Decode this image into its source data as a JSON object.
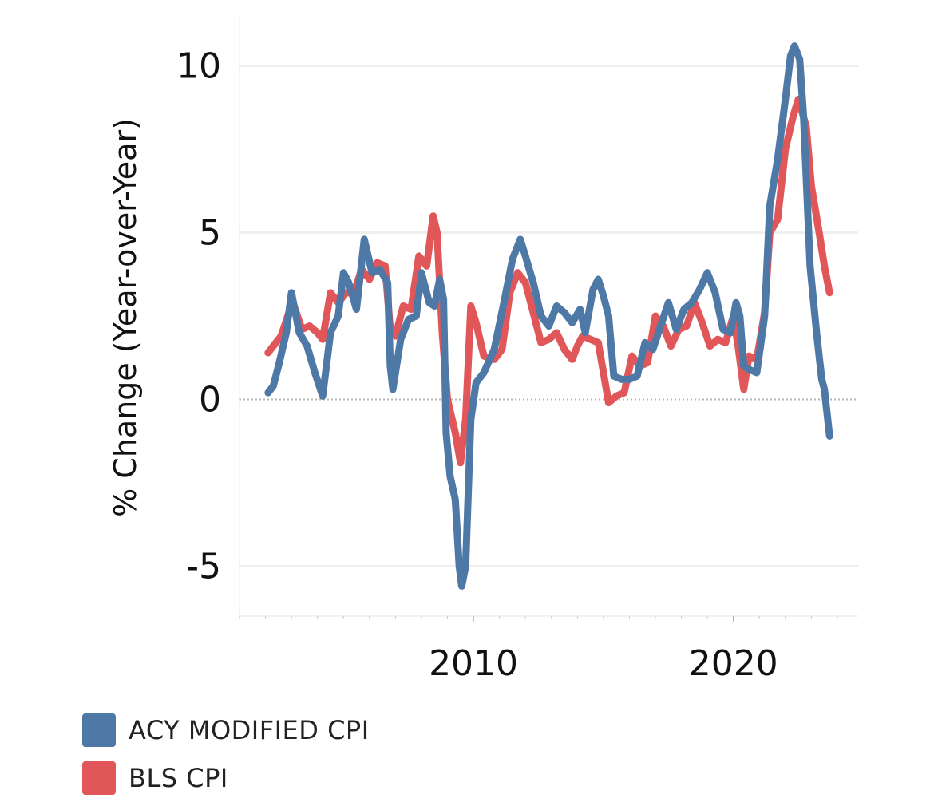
{
  "chart_data": {
    "type": "line",
    "title": "",
    "xlabel": "",
    "ylabel": "% Change (Year-over-Year)",
    "xlim": [
      2001.0,
      2024.8
    ],
    "ylim": [
      -6.5,
      11.5
    ],
    "x_ticks": [
      2010,
      2020
    ],
    "y_ticks": [
      -5,
      0,
      5,
      10
    ],
    "y_tick_labels": [
      "-5",
      "0",
      "5",
      "10"
    ],
    "zero_line": true,
    "grid": "horizontal",
    "legend_position": "bottom-left",
    "series": [
      {
        "name": "ACY MODIFIED CPI",
        "color": "#4e79a7",
        "points": [
          [
            2002.1,
            0.2
          ],
          [
            2002.3,
            0.4
          ],
          [
            2002.5,
            1.0
          ],
          [
            2002.8,
            2.0
          ],
          [
            2003.0,
            3.2
          ],
          [
            2003.3,
            2.0
          ],
          [
            2003.6,
            1.6
          ],
          [
            2003.9,
            0.8
          ],
          [
            2004.2,
            0.1
          ],
          [
            2004.5,
            2.0
          ],
          [
            2004.8,
            2.5
          ],
          [
            2005.0,
            3.8
          ],
          [
            2005.2,
            3.5
          ],
          [
            2005.5,
            2.7
          ],
          [
            2005.8,
            4.8
          ],
          [
            2006.1,
            3.8
          ],
          [
            2006.4,
            3.9
          ],
          [
            2006.7,
            3.5
          ],
          [
            2006.8,
            1.0
          ],
          [
            2006.9,
            0.3
          ],
          [
            2007.2,
            1.8
          ],
          [
            2007.5,
            2.4
          ],
          [
            2007.8,
            2.5
          ],
          [
            2008.0,
            3.8
          ],
          [
            2008.3,
            2.9
          ],
          [
            2008.5,
            2.8
          ],
          [
            2008.7,
            3.6
          ],
          [
            2008.85,
            3.0
          ],
          [
            2008.95,
            -1.0
          ],
          [
            2009.1,
            -2.3
          ],
          [
            2009.3,
            -3.0
          ],
          [
            2009.45,
            -5.0
          ],
          [
            2009.55,
            -5.6
          ],
          [
            2009.7,
            -5.0
          ],
          [
            2009.9,
            -0.6
          ],
          [
            2010.1,
            0.5
          ],
          [
            2010.4,
            0.8
          ],
          [
            2010.8,
            1.5
          ],
          [
            2011.2,
            3.0
          ],
          [
            2011.5,
            4.2
          ],
          [
            2011.8,
            4.8
          ],
          [
            2012.0,
            4.3
          ],
          [
            2012.3,
            3.5
          ],
          [
            2012.6,
            2.5
          ],
          [
            2012.9,
            2.2
          ],
          [
            2013.2,
            2.8
          ],
          [
            2013.5,
            2.6
          ],
          [
            2013.8,
            2.3
          ],
          [
            2014.1,
            2.7
          ],
          [
            2014.3,
            2.0
          ],
          [
            2014.6,
            3.3
          ],
          [
            2014.8,
            3.6
          ],
          [
            2015.0,
            3.1
          ],
          [
            2015.2,
            2.5
          ],
          [
            2015.4,
            0.7
          ],
          [
            2015.7,
            0.6
          ],
          [
            2016.0,
            0.6
          ],
          [
            2016.3,
            0.7
          ],
          [
            2016.6,
            1.7
          ],
          [
            2016.9,
            1.5
          ],
          [
            2017.2,
            2.2
          ],
          [
            2017.5,
            2.9
          ],
          [
            2017.8,
            2.1
          ],
          [
            2018.1,
            2.7
          ],
          [
            2018.4,
            2.9
          ],
          [
            2018.7,
            3.3
          ],
          [
            2019.0,
            3.8
          ],
          [
            2019.3,
            3.2
          ],
          [
            2019.6,
            2.1
          ],
          [
            2019.9,
            2.0
          ],
          [
            2020.1,
            2.9
          ],
          [
            2020.25,
            2.5
          ],
          [
            2020.4,
            1.0
          ],
          [
            2020.6,
            0.9
          ],
          [
            2020.9,
            0.8
          ],
          [
            2021.2,
            2.5
          ],
          [
            2021.4,
            5.8
          ],
          [
            2021.7,
            7.2
          ],
          [
            2022.0,
            9.0
          ],
          [
            2022.2,
            10.3
          ],
          [
            2022.35,
            10.6
          ],
          [
            2022.55,
            10.2
          ],
          [
            2022.7,
            8.5
          ],
          [
            2022.95,
            4.0
          ],
          [
            2023.2,
            2.0
          ],
          [
            2023.4,
            0.6
          ],
          [
            2023.5,
            0.3
          ],
          [
            2023.7,
            -1.1
          ]
        ]
      },
      {
        "name": "BLS CPI",
        "color": "#e15759",
        "points": [
          [
            2002.1,
            1.4
          ],
          [
            2002.3,
            1.6
          ],
          [
            2002.6,
            1.9
          ],
          [
            2002.9,
            2.6
          ],
          [
            2003.1,
            2.8
          ],
          [
            2003.4,
            2.1
          ],
          [
            2003.7,
            2.2
          ],
          [
            2004.0,
            2.0
          ],
          [
            2004.2,
            1.8
          ],
          [
            2004.5,
            3.2
          ],
          [
            2004.8,
            2.9
          ],
          [
            2005.1,
            3.2
          ],
          [
            2005.4,
            3.2
          ],
          [
            2005.7,
            3.9
          ],
          [
            2006.0,
            3.6
          ],
          [
            2006.3,
            4.1
          ],
          [
            2006.6,
            4.0
          ],
          [
            2006.8,
            2.1
          ],
          [
            2007.0,
            1.9
          ],
          [
            2007.3,
            2.8
          ],
          [
            2007.6,
            2.7
          ],
          [
            2007.9,
            4.3
          ],
          [
            2008.2,
            4.0
          ],
          [
            2008.45,
            5.5
          ],
          [
            2008.6,
            5.0
          ],
          [
            2008.8,
            2.0
          ],
          [
            2009.0,
            0.0
          ],
          [
            2009.3,
            -1.0
          ],
          [
            2009.5,
            -1.9
          ],
          [
            2009.7,
            -0.6
          ],
          [
            2009.9,
            2.8
          ],
          [
            2010.1,
            2.3
          ],
          [
            2010.4,
            1.3
          ],
          [
            2010.8,
            1.2
          ],
          [
            2011.1,
            1.5
          ],
          [
            2011.4,
            3.2
          ],
          [
            2011.7,
            3.8
          ],
          [
            2012.0,
            3.5
          ],
          [
            2012.3,
            2.6
          ],
          [
            2012.6,
            1.7
          ],
          [
            2012.9,
            1.8
          ],
          [
            2013.2,
            2.0
          ],
          [
            2013.5,
            1.5
          ],
          [
            2013.8,
            1.2
          ],
          [
            2014.0,
            1.6
          ],
          [
            2014.2,
            1.9
          ],
          [
            2014.5,
            1.8
          ],
          [
            2014.8,
            1.7
          ],
          [
            2015.0,
            0.8
          ],
          [
            2015.2,
            -0.1
          ],
          [
            2015.5,
            0.1
          ],
          [
            2015.8,
            0.2
          ],
          [
            2016.1,
            1.3
          ],
          [
            2016.4,
            1.0
          ],
          [
            2016.7,
            1.1
          ],
          [
            2017.0,
            2.5
          ],
          [
            2017.3,
            2.2
          ],
          [
            2017.6,
            1.6
          ],
          [
            2017.9,
            2.1
          ],
          [
            2018.2,
            2.2
          ],
          [
            2018.5,
            2.9
          ],
          [
            2018.8,
            2.3
          ],
          [
            2019.1,
            1.6
          ],
          [
            2019.4,
            1.8
          ],
          [
            2019.7,
            1.7
          ],
          [
            2020.0,
            2.5
          ],
          [
            2020.2,
            1.5
          ],
          [
            2020.4,
            0.3
          ],
          [
            2020.6,
            1.3
          ],
          [
            2020.9,
            1.2
          ],
          [
            2021.2,
            2.6
          ],
          [
            2021.4,
            5.0
          ],
          [
            2021.7,
            5.4
          ],
          [
            2022.0,
            7.5
          ],
          [
            2022.3,
            8.5
          ],
          [
            2022.5,
            9.0
          ],
          [
            2022.8,
            8.2
          ],
          [
            2023.0,
            6.4
          ],
          [
            2023.3,
            5.0
          ],
          [
            2023.5,
            4.0
          ],
          [
            2023.7,
            3.2
          ]
        ]
      }
    ]
  },
  "legend": {
    "items": [
      {
        "label": "ACY MODIFIED CPI",
        "color": "#4e79a7"
      },
      {
        "label": "BLS CPI",
        "color": "#e15759"
      }
    ]
  }
}
